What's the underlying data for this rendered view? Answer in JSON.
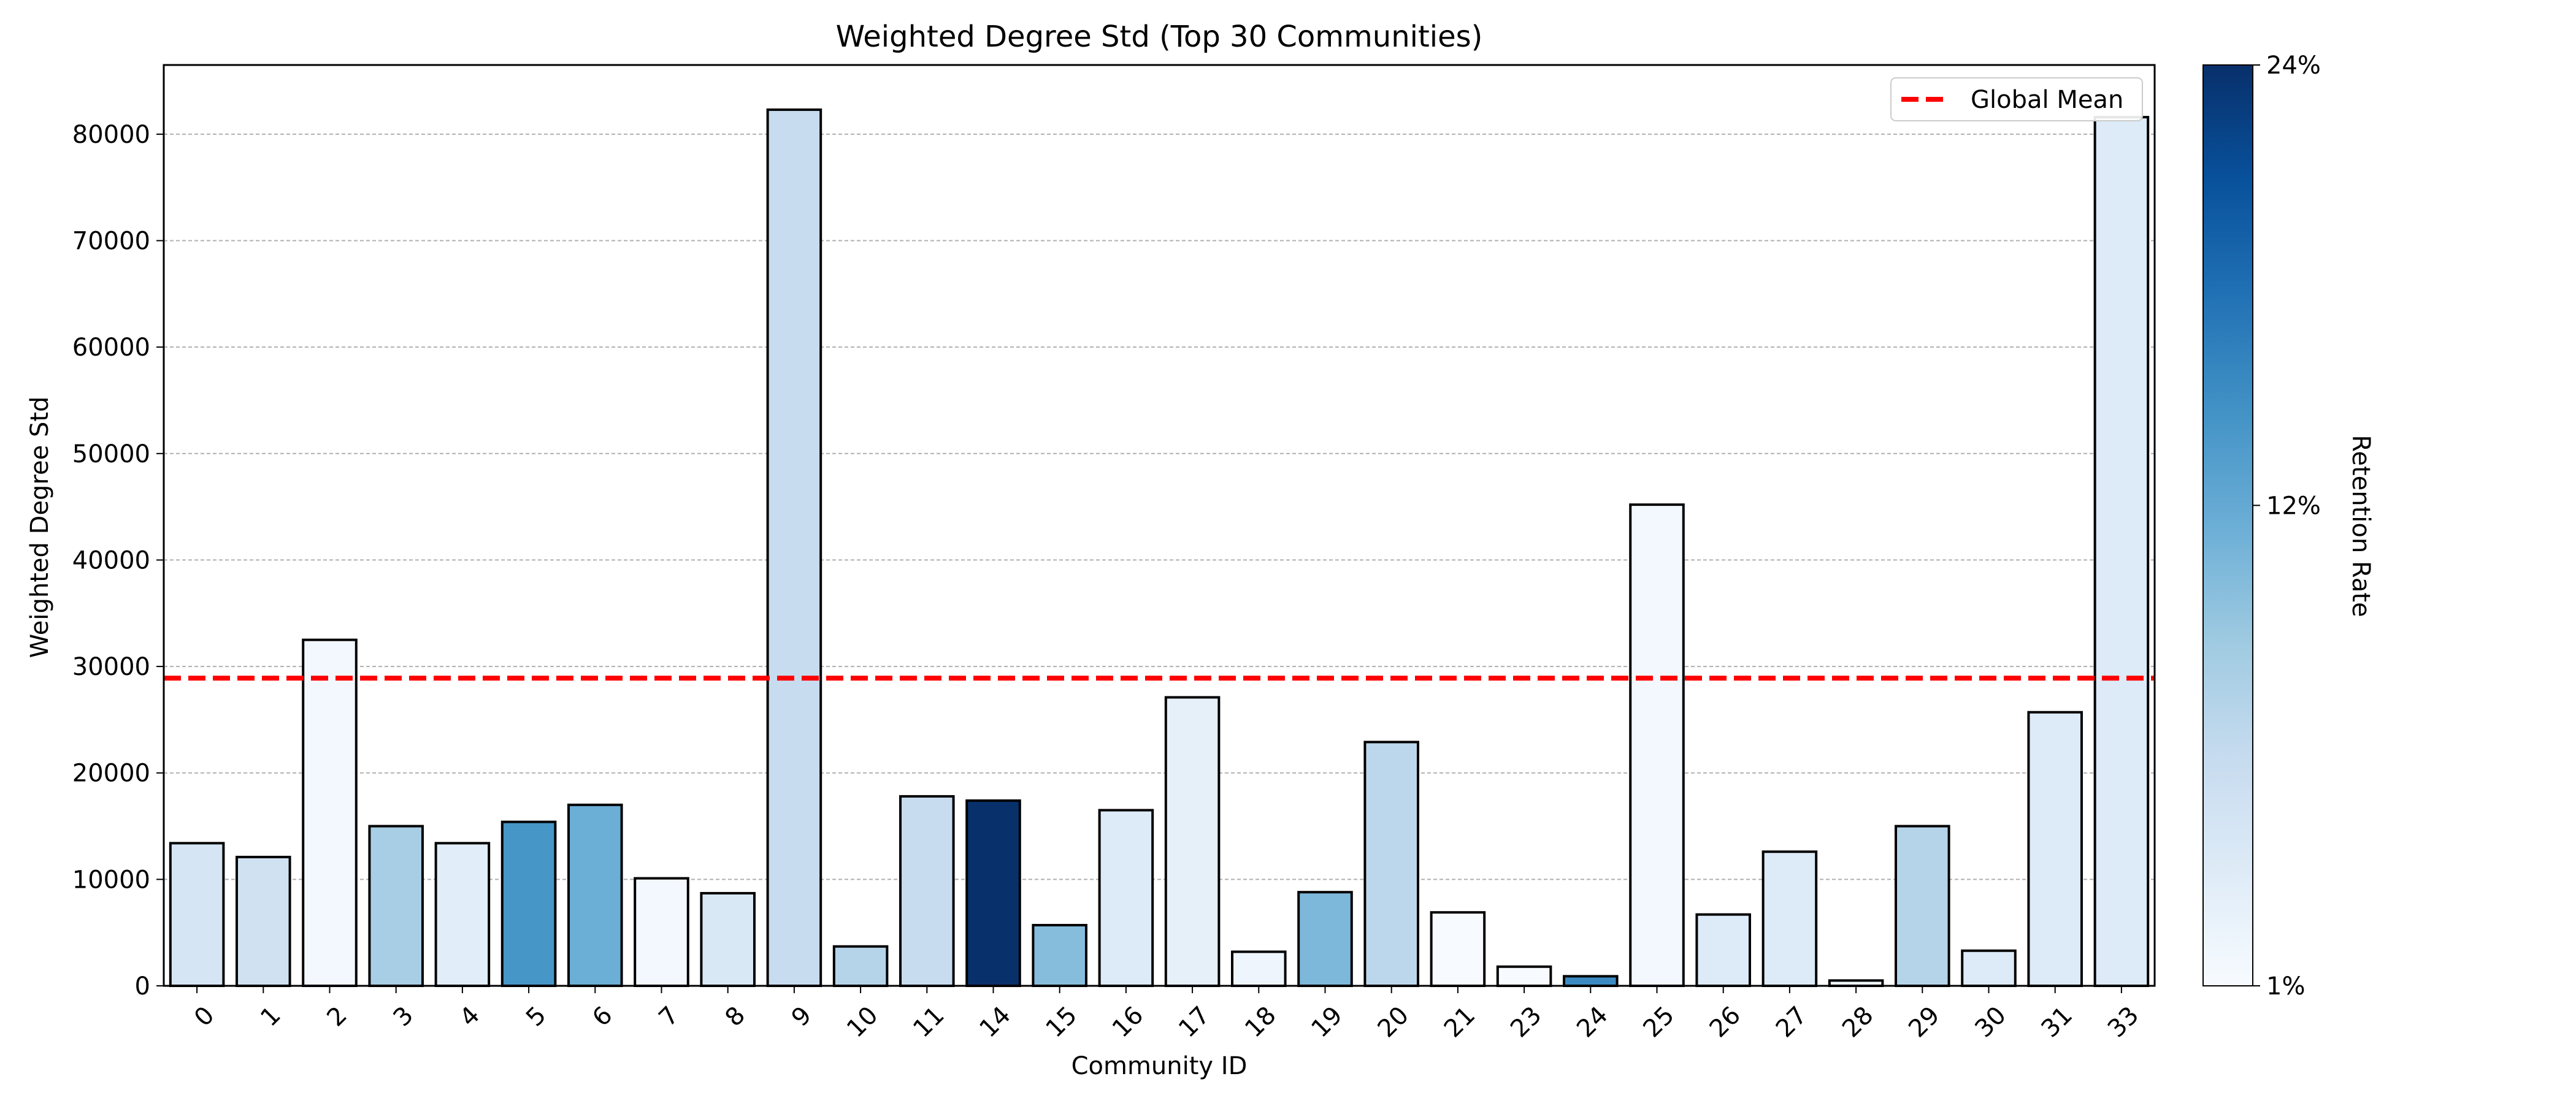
{
  "chart_data": {
    "type": "bar",
    "title": "Weighted Degree Std (Top 30 Communities)",
    "xlabel": "Community ID",
    "ylabel": "Weighted Degree Std",
    "ylim": [
      0,
      86500
    ],
    "yticks": [
      0,
      10000,
      20000,
      30000,
      40000,
      50000,
      60000,
      70000,
      80000
    ],
    "grid": "horizontal dashed",
    "categories": [
      "0",
      "1",
      "2",
      "3",
      "4",
      "5",
      "6",
      "7",
      "8",
      "9",
      "10",
      "11",
      "14",
      "15",
      "16",
      "17",
      "18",
      "19",
      "20",
      "21",
      "23",
      "24",
      "25",
      "26",
      "27",
      "28",
      "29",
      "30",
      "31",
      "33"
    ],
    "values": [
      13400,
      12100,
      32500,
      15000,
      13400,
      15400,
      17000,
      10100,
      8700,
      82300,
      3700,
      17800,
      17400,
      5700,
      16500,
      27100,
      3200,
      8800,
      22900,
      6900,
      1800,
      900,
      45200,
      6700,
      12600,
      500,
      15000,
      3300,
      25700,
      81600
    ],
    "retention_rate": [
      5.0,
      5.5,
      1.5,
      9.0,
      3.5,
      15.0,
      12.5,
      1.5,
      4.5,
      6.5,
      8.0,
      6.5,
      24.0,
      11.0,
      4.0,
      3.0,
      2.0,
      11.5,
      7.5,
      1.0,
      1.0,
      16.0,
      1.5,
      4.0,
      4.0,
      2.0,
      8.0,
      4.0,
      4.0,
      4.0
    ],
    "global_mean": 28900,
    "legend": {
      "position": "top-right",
      "entries": [
        "Global Mean"
      ]
    },
    "colorbar": {
      "label": "Retention Rate",
      "min": 1,
      "max": 24,
      "ticks": [
        "1%",
        "12%",
        "24%"
      ],
      "colormap": "Blues"
    },
    "colors": {
      "mean_line": "#ff0000",
      "grid": "#b0b0b0",
      "bar_edge": "#000000"
    }
  }
}
